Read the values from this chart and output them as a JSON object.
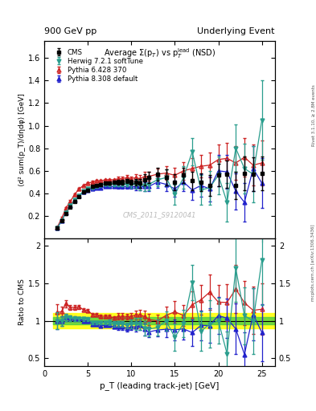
{
  "title_left": "900 GeV pp",
  "title_right": "Underlying Event",
  "ylabel_main": "⟨d² sum(p_T)/dηdφ⟩ [GeV]",
  "ylabel_ratio": "Ratio to CMS",
  "xlabel": "p_T (leading track-jet) [GeV]",
  "watermark": "CMS_2011_S9120041",
  "right_label_top": "Rivet 3.1.10, ≥ 2.8M events",
  "right_label_bot": "mcplots.cern.ch [arXiv:1306.3436]",
  "cms_x": [
    1.5,
    2.0,
    2.5,
    3.0,
    3.5,
    4.0,
    4.5,
    5.0,
    5.5,
    6.0,
    6.5,
    7.0,
    7.5,
    8.0,
    8.5,
    9.0,
    9.5,
    10.0,
    10.5,
    11.0,
    11.5,
    12.0,
    13.0,
    14.0,
    15.0,
    16.0,
    17.0,
    18.0,
    19.0,
    20.0,
    21.0,
    22.0,
    23.0,
    24.0,
    25.0
  ],
  "cms_y": [
    0.09,
    0.16,
    0.22,
    0.28,
    0.33,
    0.37,
    0.41,
    0.43,
    0.46,
    0.47,
    0.48,
    0.49,
    0.49,
    0.5,
    0.5,
    0.5,
    0.51,
    0.5,
    0.5,
    0.49,
    0.52,
    0.54,
    0.57,
    0.54,
    0.5,
    0.56,
    0.51,
    0.5,
    0.47,
    0.56,
    0.57,
    0.47,
    0.58,
    0.57,
    0.58
  ],
  "cms_yerr": [
    0.01,
    0.01,
    0.01,
    0.01,
    0.01,
    0.01,
    0.01,
    0.01,
    0.01,
    0.01,
    0.01,
    0.01,
    0.01,
    0.01,
    0.02,
    0.02,
    0.02,
    0.02,
    0.03,
    0.04,
    0.05,
    0.05,
    0.06,
    0.07,
    0.07,
    0.07,
    0.08,
    0.08,
    0.09,
    0.1,
    0.12,
    0.12,
    0.15,
    0.15,
    0.15
  ],
  "herwig_x": [
    1.5,
    2.0,
    2.5,
    3.0,
    3.5,
    4.0,
    4.5,
    5.0,
    5.5,
    6.0,
    6.5,
    7.0,
    7.5,
    8.0,
    8.5,
    9.0,
    9.5,
    10.0,
    10.5,
    11.0,
    11.5,
    12.0,
    13.0,
    14.0,
    15.0,
    16.0,
    17.0,
    18.0,
    19.0,
    20.0,
    21.0,
    22.0,
    23.0,
    24.0,
    25.0
  ],
  "herwig_y": [
    0.09,
    0.16,
    0.23,
    0.29,
    0.34,
    0.38,
    0.42,
    0.44,
    0.45,
    0.46,
    0.47,
    0.48,
    0.48,
    0.48,
    0.48,
    0.48,
    0.48,
    0.48,
    0.48,
    0.47,
    0.47,
    0.48,
    0.52,
    0.54,
    0.39,
    0.54,
    0.77,
    0.43,
    0.45,
    0.56,
    0.32,
    0.8,
    0.62,
    0.57,
    1.05
  ],
  "herwig_yerr": [
    0.01,
    0.01,
    0.01,
    0.01,
    0.01,
    0.01,
    0.01,
    0.01,
    0.01,
    0.01,
    0.01,
    0.01,
    0.02,
    0.02,
    0.02,
    0.02,
    0.02,
    0.03,
    0.04,
    0.04,
    0.05,
    0.05,
    0.06,
    0.07,
    0.09,
    0.1,
    0.12,
    0.13,
    0.15,
    0.17,
    0.17,
    0.21,
    0.22,
    0.25,
    0.35
  ],
  "pythia6_x": [
    1.5,
    2.0,
    2.5,
    3.0,
    3.5,
    4.0,
    4.5,
    5.0,
    5.5,
    6.0,
    6.5,
    7.0,
    7.5,
    8.0,
    8.5,
    9.0,
    9.5,
    10.0,
    10.5,
    11.0,
    11.5,
    12.0,
    13.0,
    14.0,
    15.0,
    16.0,
    17.0,
    18.0,
    19.0,
    20.0,
    21.0,
    22.0,
    23.0,
    24.0,
    25.0
  ],
  "pythia6_y": [
    0.1,
    0.18,
    0.27,
    0.33,
    0.39,
    0.44,
    0.47,
    0.49,
    0.5,
    0.51,
    0.51,
    0.52,
    0.52,
    0.52,
    0.53,
    0.53,
    0.54,
    0.53,
    0.54,
    0.53,
    0.55,
    0.55,
    0.57,
    0.58,
    0.56,
    0.6,
    0.62,
    0.64,
    0.65,
    0.7,
    0.71,
    0.67,
    0.72,
    0.65,
    0.67
  ],
  "pythia6_yerr": [
    0.01,
    0.01,
    0.01,
    0.01,
    0.01,
    0.01,
    0.01,
    0.01,
    0.01,
    0.01,
    0.01,
    0.01,
    0.01,
    0.01,
    0.02,
    0.02,
    0.02,
    0.02,
    0.03,
    0.03,
    0.04,
    0.04,
    0.05,
    0.06,
    0.07,
    0.08,
    0.09,
    0.1,
    0.11,
    0.13,
    0.14,
    0.15,
    0.17,
    0.18,
    0.2
  ],
  "pythia8_x": [
    1.5,
    2.0,
    2.5,
    3.0,
    3.5,
    4.0,
    4.5,
    5.0,
    5.5,
    6.0,
    6.5,
    7.0,
    7.5,
    8.0,
    8.5,
    9.0,
    9.5,
    10.0,
    10.5,
    11.0,
    11.5,
    12.0,
    13.0,
    14.0,
    15.0,
    16.0,
    17.0,
    18.0,
    19.0,
    20.0,
    21.0,
    22.0,
    23.0,
    24.0,
    25.0
  ],
  "pythia8_y": [
    0.09,
    0.16,
    0.23,
    0.29,
    0.34,
    0.38,
    0.41,
    0.43,
    0.44,
    0.45,
    0.45,
    0.46,
    0.46,
    0.46,
    0.46,
    0.46,
    0.46,
    0.46,
    0.46,
    0.46,
    0.46,
    0.46,
    0.5,
    0.48,
    0.44,
    0.5,
    0.43,
    0.47,
    0.44,
    0.6,
    0.59,
    0.42,
    0.32,
    0.62,
    0.49
  ],
  "pythia8_yerr": [
    0.01,
    0.01,
    0.01,
    0.01,
    0.01,
    0.01,
    0.01,
    0.01,
    0.01,
    0.01,
    0.01,
    0.01,
    0.01,
    0.01,
    0.02,
    0.02,
    0.02,
    0.02,
    0.03,
    0.03,
    0.04,
    0.04,
    0.05,
    0.06,
    0.07,
    0.08,
    0.09,
    0.1,
    0.11,
    0.14,
    0.15,
    0.16,
    0.17,
    0.2,
    0.22
  ],
  "cms_color": "#000000",
  "herwig_color": "#2b9e8e",
  "pythia6_color": "#cc2222",
  "pythia8_color": "#2222cc",
  "ylim_main": [
    0.0,
    1.75
  ],
  "ylim_ratio": [
    0.4,
    2.1
  ],
  "xlim": [
    1.0,
    26.5
  ],
  "yticks_main": [
    0.2,
    0.4,
    0.6,
    0.8,
    1.0,
    1.2,
    1.4,
    1.6
  ],
  "yticks_ratio": [
    0.5,
    1.0,
    1.5,
    2.0
  ],
  "xticks": [
    0,
    5,
    10,
    15,
    20,
    25
  ],
  "green_band_half": 0.05,
  "yellow_band_half": 0.1
}
